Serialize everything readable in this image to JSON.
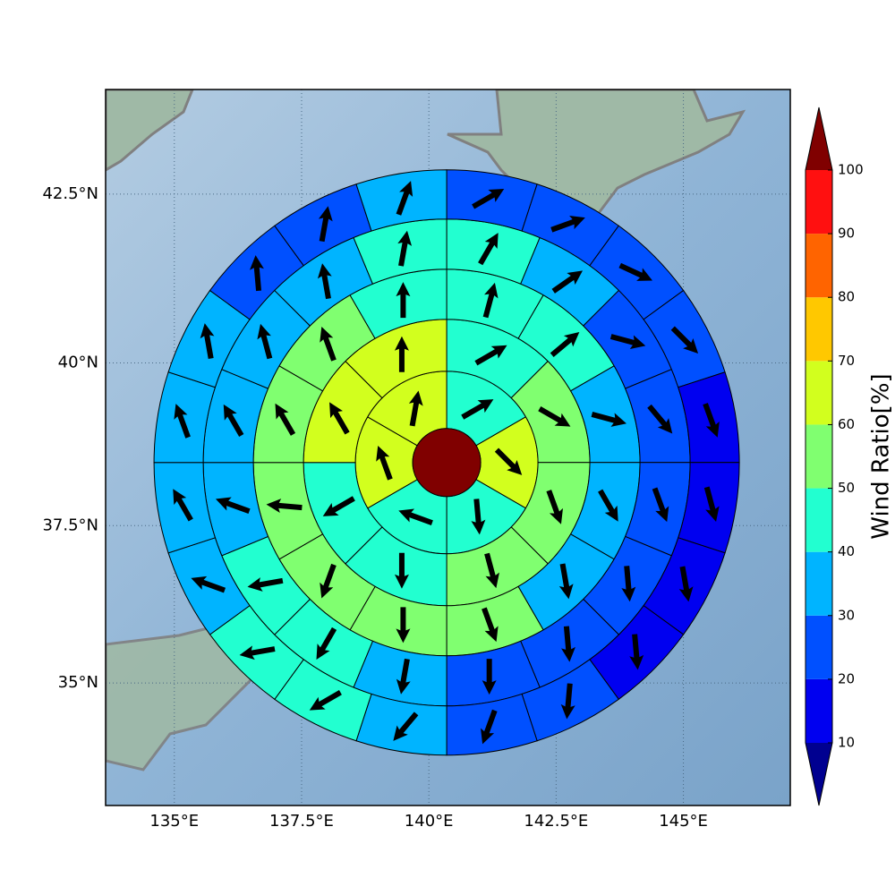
{
  "chart_data": {
    "type": "polar-sector-map",
    "xlim": [
      133.65,
      147.1
    ],
    "ylim": [
      33.0,
      44.0
    ],
    "xticks": [
      {
        "value": 135,
        "label": "135°E"
      },
      {
        "value": 137.5,
        "label": "137.5°E"
      },
      {
        "value": 140,
        "label": "140°E"
      },
      {
        "value": 142.5,
        "label": "142.5°E"
      },
      {
        "value": 145,
        "label": "145°E"
      }
    ],
    "yticks": [
      {
        "value": 35,
        "label": "35°N"
      },
      {
        "value": 37.5,
        "label": "37.5°N"
      },
      {
        "value": 40,
        "label": "40°N"
      },
      {
        "value": 42.5,
        "label": "42.5°N"
      }
    ],
    "grid": true,
    "projection": "mercator",
    "center": [
      140.35,
      38.48
    ],
    "rings": [
      {
        "values": [
          45,
          65,
          45,
          45,
          65,
          65
        ],
        "directions": [
          60,
          135,
          175,
          290,
          340,
          10
        ]
      },
      {
        "values": [
          45,
          55,
          55,
          55,
          45,
          45,
          65,
          65
        ],
        "directions": [
          60,
          120,
          160,
          165,
          180,
          240,
          330,
          0
        ]
      },
      {
        "values": [
          45,
          45,
          35,
          35,
          35,
          55,
          55,
          55,
          55,
          55,
          55,
          45
        ],
        "directions": [
          15,
          50,
          105,
          150,
          170,
          160,
          180,
          200,
          275,
          330,
          340,
          0
        ]
      },
      {
        "values": [
          45,
          35,
          25,
          25,
          25,
          25,
          25,
          25,
          35,
          45,
          45,
          35,
          35,
          35,
          35,
          45
        ],
        "directions": [
          30,
          55,
          105,
          140,
          160,
          175,
          175,
          180,
          190,
          210,
          260,
          290,
          330,
          345,
          350,
          10
        ]
      },
      {
        "values": [
          25,
          25,
          25,
          25,
          15,
          15,
          15,
          15,
          25,
          25,
          35,
          45,
          45,
          35,
          35,
          35,
          35,
          25,
          25,
          35
        ],
        "directions": [
          60,
          70,
          115,
          135,
          160,
          165,
          170,
          175,
          185,
          200,
          220,
          240,
          260,
          290,
          330,
          340,
          350,
          355,
          10,
          20
        ]
      }
    ],
    "colorbar": {
      "label": "Wind Ratio[%]",
      "ticks": [
        10,
        20,
        30,
        40,
        50,
        60,
        70,
        80,
        90,
        100
      ],
      "colors": [
        "#0000f0",
        "#0050ff",
        "#00b4ff",
        "#22ffd0",
        "#80ff70",
        "#d2ff1e",
        "#ffc800",
        "#ff6400",
        "#ff1010"
      ],
      "under_color": "#000090",
      "over_color": "#800000"
    }
  }
}
